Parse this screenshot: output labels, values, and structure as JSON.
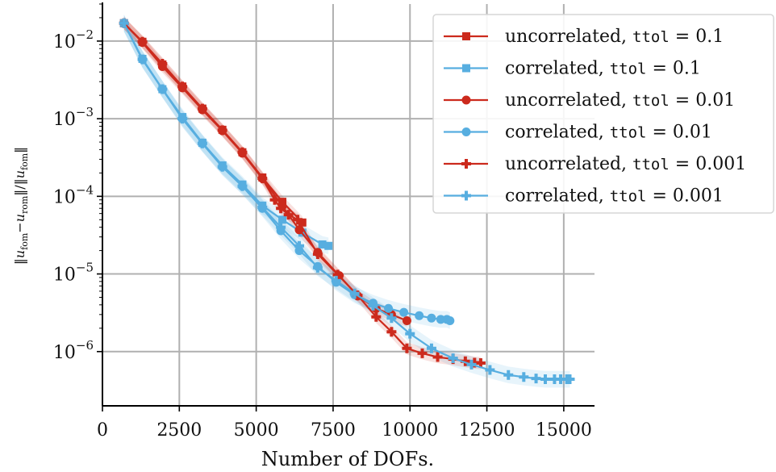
{
  "chart_data": {
    "type": "line",
    "xlabel": "Number of DOFs.",
    "ylabel": "‖u_fom − u_rom‖ / ‖u_fom‖",
    "ylabel_parts": {
      "open": "‖",
      "u1": "u",
      "fom1": "fom",
      "minus": "−",
      "u2": "u",
      "rom": "rom",
      "close_slash": "‖/‖",
      "u3": "u",
      "fom2": "fom",
      "end": "‖"
    },
    "xlim": [
      0,
      16000
    ],
    "ylim": [
      2e-07,
      0.03
    ],
    "y_scale": "log",
    "x_ticks": [
      0,
      2500,
      5000,
      7500,
      10000,
      12500,
      15000
    ],
    "x_tick_labels": [
      "0",
      "2500",
      "5000",
      "7500",
      "10000",
      "12500",
      "15000"
    ],
    "y_ticks": [
      0.01,
      0.001,
      0.0001,
      1e-05,
      1e-06
    ],
    "y_tick_labels": [
      {
        "base": "10",
        "exp": "−2"
      },
      {
        "base": "10",
        "exp": "−3"
      },
      {
        "base": "10",
        "exp": "−4"
      },
      {
        "base": "10",
        "exp": "−5"
      },
      {
        "base": "10",
        "exp": "−6"
      }
    ],
    "grid": true,
    "legend_position": "top-right",
    "colors": {
      "uncorrelated": "#cc2a1d",
      "correlated": "#57aee0"
    },
    "series": [
      {
        "name": "uncorrelated, ttol = 0.1",
        "label_prefix": "uncorrelated, ",
        "label_mono": "ttol",
        "label_suffix": " = 0.1",
        "color": "#cc2a1d",
        "marker": "square",
        "x": [
          700,
          1300,
          1950,
          2600,
          3250,
          3900,
          4550,
          5200,
          5850,
          6500
        ],
        "y": [
          0.017,
          0.0098,
          0.005,
          0.0026,
          0.00135,
          0.00072,
          0.00037,
          0.000175,
          8.5e-05,
          4.6e-05
        ]
      },
      {
        "name": "correlated, ttol = 0.1",
        "label_prefix": "correlated, ",
        "label_mono": "ttol",
        "label_suffix": " = 0.1",
        "color": "#57aee0",
        "marker": "square",
        "x": [
          700,
          1300,
          1950,
          2600,
          3250,
          3900,
          4550,
          5200,
          5850,
          6500,
          7150,
          7350
        ],
        "y": [
          0.017,
          0.0059,
          0.0024,
          0.00105,
          0.00049,
          0.00025,
          0.000142,
          7.6e-05,
          5e-05,
          3.4e-05,
          2.4e-05,
          2.3e-05
        ]
      },
      {
        "name": "uncorrelated, ttol = 0.01",
        "label_prefix": "uncorrelated, ",
        "label_mono": "ttol",
        "label_suffix": " = 0.01",
        "color": "#cc2a1d",
        "marker": "circle",
        "x": [
          700,
          1300,
          1950,
          2600,
          3250,
          3900,
          4550,
          5200,
          5850,
          6400,
          7000,
          7700,
          8300,
          8900,
          9400,
          9900
        ],
        "y": [
          0.017,
          0.0096,
          0.0047,
          0.0025,
          0.0013,
          0.0007,
          0.00036,
          0.00017,
          7.5e-05,
          3.7e-05,
          1.9e-05,
          9.5e-06,
          5.2e-06,
          3.6e-06,
          3e-06,
          2.5e-06
        ]
      },
      {
        "name": "correlated, ttol = 0.01",
        "label_prefix": "correlated, ",
        "label_mono": "ttol",
        "label_suffix": " = 0.01",
        "color": "#57aee0",
        "marker": "circle",
        "x": [
          700,
          1300,
          1950,
          2600,
          3250,
          3900,
          4550,
          5200,
          5800,
          6400,
          7000,
          7600,
          8200,
          8800,
          9300,
          9800,
          10300,
          10700,
          11000,
          11200,
          11300
        ],
        "y": [
          0.017,
          0.0058,
          0.0024,
          0.001,
          0.00048,
          0.00024,
          0.000135,
          7e-05,
          3.6e-05,
          2e-05,
          1.25e-05,
          7.8e-06,
          5.4e-06,
          4.2e-06,
          3.6e-06,
          3.2e-06,
          2.9e-06,
          2.7e-06,
          2.6e-06,
          2.6e-06,
          2.5e-06
        ]
      },
      {
        "name": "uncorrelated, ttol = 0.001",
        "label_prefix": "uncorrelated, ",
        "label_mono": "ttol",
        "label_suffix": " = 0.001",
        "color": "#cc2a1d",
        "marker": "plus",
        "x": [
          700,
          1300,
          1950,
          2600,
          3250,
          3900,
          4550,
          5200,
          5600,
          5800,
          6050,
          6350,
          7000,
          7650,
          8300,
          8900,
          9400,
          9900,
          10400,
          10900,
          11400,
          11800,
          12100,
          12300
        ],
        "y": [
          0.017,
          0.0098,
          0.0051,
          0.0026,
          0.00135,
          0.00071,
          0.00037,
          0.00017,
          9e-05,
          7e-05,
          5.8e-05,
          5e-05,
          1.8e-05,
          9.8e-06,
          5.3e-06,
          2.8e-06,
          1.8e-06,
          1.1e-06,
          9.5e-07,
          8.5e-07,
          8e-07,
          7.5e-07,
          7.2e-07,
          7.1e-07
        ]
      },
      {
        "name": "correlated, ttol = 0.001",
        "label_prefix": "correlated, ",
        "label_mono": "ttol",
        "label_suffix": " = 0.001",
        "color": "#57aee0",
        "marker": "plus",
        "x": [
          700,
          1300,
          1950,
          2600,
          3250,
          3900,
          4550,
          5200,
          5800,
          6400,
          7000,
          7600,
          8200,
          8800,
          9400,
          10000,
          10700,
          11400,
          12000,
          12600,
          13200,
          13700,
          14100,
          14400,
          14700,
          14900,
          15100,
          15200
        ],
        "y": [
          0.017,
          0.0058,
          0.0024,
          0.001,
          0.00048,
          0.00024,
          0.000135,
          7.2e-05,
          4e-05,
          2.3e-05,
          1.2e-05,
          8.2e-06,
          5.6e-06,
          3.9e-06,
          2.7e-06,
          1.7e-06,
          1.1e-06,
          8.2e-07,
          6.8e-07,
          5.8e-07,
          5e-07,
          4.7e-07,
          4.5e-07,
          4.4e-07,
          4.4e-07,
          4.4e-07,
          4.4e-07,
          4.4e-07
        ]
      }
    ]
  }
}
